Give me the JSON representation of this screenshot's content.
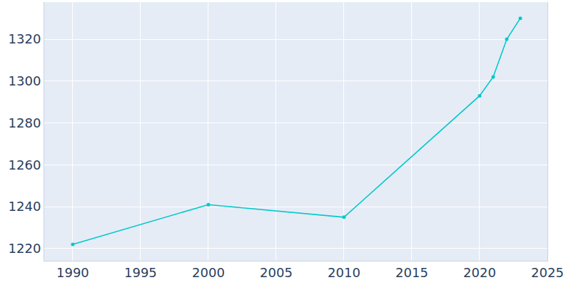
{
  "chart_data": {
    "type": "line",
    "x": [
      1990,
      2000,
      2010,
      2020,
      2021,
      2022,
      2023
    ],
    "values": [
      1222,
      1241,
      1235,
      1293,
      1302,
      1320,
      1330
    ],
    "color": "#00c9c9",
    "marker": "circle",
    "line_style": "solid",
    "xlim": [
      1987.9,
      2025
    ],
    "xticks": [
      1990,
      1995,
      2000,
      2005,
      2010,
      2015,
      2020,
      2025
    ],
    "ylim": [
      1214.2,
      1337.7
    ],
    "yticks": [
      1220,
      1240,
      1260,
      1280,
      1300,
      1320
    ],
    "grid": true
  }
}
